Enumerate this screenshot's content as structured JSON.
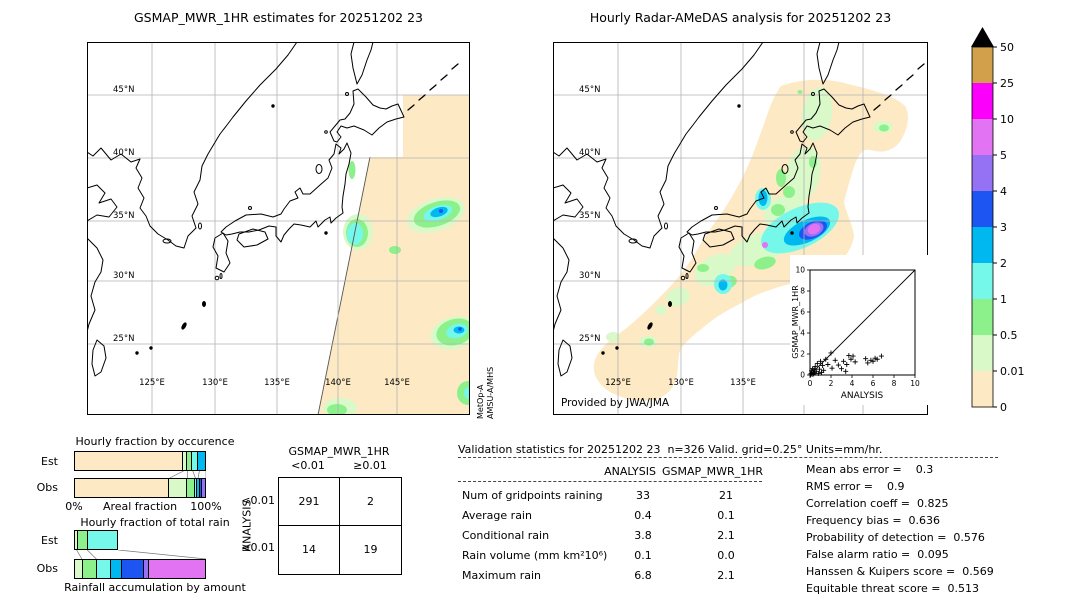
{
  "palette": {
    "peach": "#fde9c3",
    "paleGreen": "#d9f9c8",
    "green": "#8cf18b",
    "aqua": "#75f8e9",
    "deepCyan": "#00b8f0",
    "blue": "#1c55f2",
    "purple": "#9571f3",
    "orchid": "#e273f3",
    "magenta": "#fb00fb",
    "gold": "#d2a04a",
    "grid": "#b3b3b3"
  },
  "left_map": {
    "title": "GSMAP_MWR_1HR estimates for 20251202 23",
    "satellite_source": [
      "MetOp-A",
      "AMSU-A/MHS"
    ],
    "lat_labels": [
      "45°N",
      "40°N",
      "35°N",
      "30°N",
      "25°N"
    ],
    "lon_labels": [
      "125°E",
      "130°E",
      "135°E",
      "140°E",
      "145°E"
    ]
  },
  "right_map": {
    "title": "Hourly Radar-AMeDAS analysis for 20251202 23",
    "credit": "Provided by JWA/JMA",
    "lat_labels": [
      "45°N",
      "40°N",
      "35°N",
      "30°N",
      "25°N"
    ],
    "lon_labels": [
      "125°E",
      "130°E",
      "135°E"
    ]
  },
  "colorbar": {
    "tick_labels": [
      "50",
      "25",
      "10",
      "5",
      "4",
      "3",
      "2",
      "1",
      "0.5",
      "0.01",
      "0"
    ],
    "colors_top_to_bottom": [
      "gold",
      "magenta",
      "orchid",
      "purple",
      "blue",
      "deepCyan",
      "aqua",
      "green",
      "paleGreen",
      "peach"
    ],
    "overflow_marker": "black-triangle"
  },
  "chart_data": [
    {
      "id": "inset_scatter",
      "type": "scatter",
      "xlabel": "ANALYSIS",
      "ylabel": "GSMAP_MWR_1HR",
      "xlim": [
        0,
        10
      ],
      "ylim": [
        0,
        10
      ],
      "xticks": [
        0,
        2,
        4,
        6,
        8,
        10
      ],
      "yticks": [
        0,
        2,
        4,
        6,
        8,
        10
      ],
      "diagonal": true,
      "points": [
        [
          0.05,
          0.02
        ],
        [
          0.1,
          0.15
        ],
        [
          0.15,
          0.4
        ],
        [
          0.2,
          0.05
        ],
        [
          0.25,
          0.6
        ],
        [
          0.3,
          0.25
        ],
        [
          0.35,
          0.1
        ],
        [
          0.4,
          0.5
        ],
        [
          0.45,
          0.2
        ],
        [
          0.5,
          0.8
        ],
        [
          0.6,
          0.35
        ],
        [
          0.7,
          1.1
        ],
        [
          0.8,
          0.15
        ],
        [
          0.9,
          0.55
        ],
        [
          1.0,
          1.3
        ],
        [
          1.1,
          0.25
        ],
        [
          1.2,
          0.9
        ],
        [
          1.3,
          0.45
        ],
        [
          1.5,
          1.5
        ],
        [
          1.7,
          1.0
        ],
        [
          2.0,
          2.1
        ],
        [
          2.1,
          0.65
        ],
        [
          2.4,
          1.4
        ],
        [
          2.7,
          0.95
        ],
        [
          3.0,
          0.6
        ],
        [
          3.2,
          1.3
        ],
        [
          3.4,
          0.35
        ],
        [
          3.5,
          1.0
        ],
        [
          3.7,
          1.85
        ],
        [
          3.9,
          1.5
        ],
        [
          4.1,
          1.8
        ],
        [
          4.3,
          1.25
        ],
        [
          5.3,
          1.55
        ],
        [
          5.5,
          1.15
        ],
        [
          5.8,
          1.4
        ],
        [
          6.0,
          1.3
        ],
        [
          6.2,
          1.6
        ],
        [
          6.4,
          1.5
        ],
        [
          6.8,
          1.8
        ]
      ]
    },
    {
      "id": "hourly_fraction_by_occurrence",
      "type": "bar",
      "title": "Hourly fraction by occurence",
      "xlabel": "Areal fraction",
      "x_min_label": "0%",
      "x_max_label": "100%",
      "rows": [
        {
          "label": "Est",
          "segments": [
            {
              "color": "peach",
              "pct": 83
            },
            {
              "color": "paleGreen",
              "pct": 3
            },
            {
              "color": "green",
              "pct": 4
            },
            {
              "color": "aqua",
              "pct": 5
            },
            {
              "color": "deepCyan",
              "pct": 5
            }
          ]
        },
        {
          "label": "Obs",
          "segments": [
            {
              "color": "peach",
              "pct": 72.5
            },
            {
              "color": "paleGreen",
              "pct": 13.5
            },
            {
              "color": "green",
              "pct": 6
            },
            {
              "color": "aqua",
              "pct": 2
            },
            {
              "color": "deepCyan",
              "pct": 2
            },
            {
              "color": "blue",
              "pct": 2
            },
            {
              "color": "purple",
              "pct": 2
            }
          ]
        }
      ]
    },
    {
      "id": "hourly_fraction_of_total_rain",
      "type": "bar",
      "title": "Hourly fraction of total rain",
      "xlabel": "Rainfall accumulation by amount",
      "rows": [
        {
          "label": "Est",
          "segments": [
            {
              "color": "paleGreen",
              "pct": 2
            },
            {
              "color": "green",
              "pct": 8
            },
            {
              "color": "aqua",
              "pct": 23.5
            }
          ]
        },
        {
          "label": "Obs",
          "segments": [
            {
              "color": "paleGreen",
              "pct": 6
            },
            {
              "color": "green",
              "pct": 11
            },
            {
              "color": "aqua",
              "pct": 11
            },
            {
              "color": "deepCyan",
              "pct": 8
            },
            {
              "color": "blue",
              "pct": 17
            },
            {
              "color": "purple",
              "pct": 4
            },
            {
              "color": "orchid",
              "pct": 43
            }
          ]
        }
      ]
    },
    {
      "id": "contingency_table",
      "type": "table",
      "title": "GSMAP_MWR_1HR",
      "col_headers": [
        "<0.01",
        "≥0.01"
      ],
      "row_axis": "ANALYSIS",
      "row_headers": [
        "<0.01",
        "≥0.01"
      ],
      "values": [
        [
          "291",
          "2"
        ],
        [
          "14",
          "19"
        ]
      ]
    },
    {
      "id": "validation_table",
      "type": "table",
      "title": "Validation statistics for 20251202 23  n=326 Valid. grid=0.25° Units=mm/hr.",
      "columns": [
        "ANALYSIS",
        "GSMAP_MWR_1HR"
      ],
      "rows": [
        [
          "Num of gridpoints raining",
          "33",
          "21"
        ],
        [
          "Average rain",
          "0.4",
          "0.1"
        ],
        [
          "Conditional rain",
          "3.8",
          "2.1"
        ],
        [
          "Rain volume (mm km²10⁶)",
          "0.1",
          "0.0"
        ],
        [
          "Maximum rain",
          "6.8",
          "2.1"
        ]
      ]
    }
  ],
  "summary_stats": [
    {
      "label": "Mean abs error",
      "value": "0.3"
    },
    {
      "label": "RMS error",
      "value": "0.9"
    },
    {
      "label": "Correlation coeff",
      "value": "0.825"
    },
    {
      "label": "Frequency bias",
      "value": "0.636"
    },
    {
      "label": "Probability of detection",
      "value": "0.576"
    },
    {
      "label": "False alarm ratio",
      "value": "0.095"
    },
    {
      "label": "Hanssen & Kuipers score",
      "value": "0.569"
    },
    {
      "label": "Equitable threat score",
      "value": "0.513"
    }
  ]
}
